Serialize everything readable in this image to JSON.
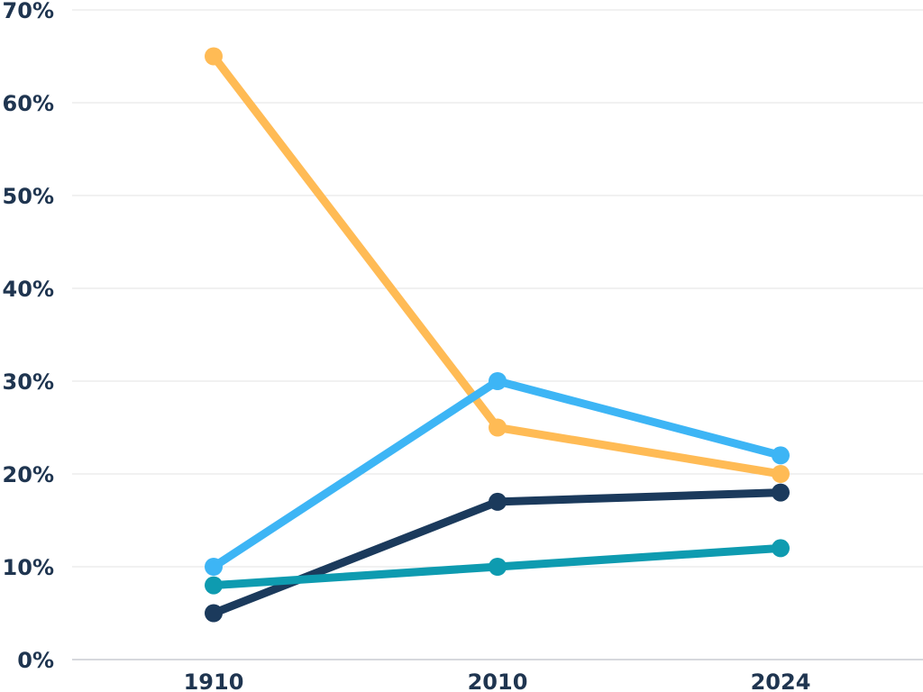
{
  "chart_data": {
    "type": "line",
    "title": "",
    "xlabel": "",
    "ylabel": "",
    "categories": [
      "1910",
      "2010",
      "2024"
    ],
    "y_tick_labels": [
      "0%",
      "10%",
      "20%",
      "30%",
      "40%",
      "50%",
      "60%",
      "70%"
    ],
    "y_ticks": [
      0,
      10,
      20,
      30,
      40,
      50,
      60,
      70
    ],
    "ylim": [
      0,
      70
    ],
    "grid": true,
    "legend": "none",
    "series": [
      {
        "color": "#ffbb55",
        "values": [
          65,
          25,
          20
        ]
      },
      {
        "color": "#3db5f5",
        "values": [
          10,
          30,
          22
        ]
      },
      {
        "color": "#1b3a5c",
        "values": [
          5,
          17,
          18
        ]
      },
      {
        "color": "#0e9bb0",
        "values": [
          8,
          10,
          12
        ]
      }
    ]
  }
}
